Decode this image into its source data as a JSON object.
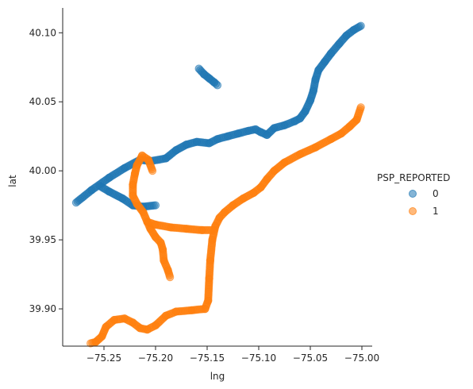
{
  "chart_data": {
    "type": "scatter",
    "title": "",
    "xlabel": "lng",
    "ylabel": "lat",
    "xlim": [
      -75.29,
      -74.99
    ],
    "ylim": [
      39.873,
      40.118
    ],
    "xticks": [
      -75.25,
      -75.2,
      -75.15,
      -75.1,
      -75.05,
      -75.0
    ],
    "xtick_labels": [
      "−75.25",
      "−75.20",
      "−75.15",
      "−75.10",
      "−75.05",
      "−75.00"
    ],
    "yticks": [
      39.9,
      39.95,
      40.0,
      40.05,
      40.1
    ],
    "ytick_labels": [
      "39.90",
      "39.95",
      "40.00",
      "40.05",
      "40.10"
    ],
    "grid": false,
    "legend": {
      "title": "PSP_REPORTED",
      "placement": "right"
    },
    "series": [
      {
        "name": "0",
        "color": "#1f77b4",
        "paths": [
          [
            [
              -75.277,
              39.977
            ],
            [
              -75.262,
              39.986
            ],
            [
              -75.245,
              39.995
            ],
            [
              -75.23,
              40.002
            ],
            [
              -75.215,
              40.008
            ],
            [
              -75.205,
              40.007
            ],
            [
              -75.19,
              40.009
            ],
            [
              -75.18,
              40.015
            ],
            [
              -75.17,
              40.019
            ],
            [
              -75.16,
              40.021
            ],
            [
              -75.148,
              40.02
            ],
            [
              -75.14,
              40.023
            ],
            [
              -75.13,
              40.025
            ],
            [
              -75.12,
              40.027
            ],
            [
              -75.11,
              40.029
            ],
            [
              -75.103,
              40.03
            ],
            [
              -75.098,
              40.028
            ],
            [
              -75.092,
              40.026
            ],
            [
              -75.085,
              40.031
            ],
            [
              -75.075,
              40.033
            ],
            [
              -75.065,
              40.036
            ],
            [
              -75.06,
              40.038
            ],
            [
              -75.055,
              40.043
            ],
            [
              -75.05,
              40.051
            ],
            [
              -75.047,
              40.058
            ],
            [
              -75.045,
              40.066
            ],
            [
              -75.042,
              40.073
            ],
            [
              -75.036,
              40.079
            ],
            [
              -75.03,
              40.085
            ],
            [
              -75.022,
              40.092
            ],
            [
              -75.015,
              40.098
            ],
            [
              -75.008,
              40.102
            ],
            [
              -75.001,
              40.105
            ]
          ],
          [
            [
              -75.254,
              39.989
            ],
            [
              -75.245,
              39.985
            ],
            [
              -75.232,
              39.98
            ],
            [
              -75.222,
              39.975
            ],
            [
              -75.212,
              39.974
            ],
            [
              -75.2,
              39.975
            ]
          ],
          [
            [
              -75.158,
              40.074
            ],
            [
              -75.153,
              40.07
            ],
            [
              -75.148,
              40.067
            ],
            [
              -75.143,
              40.064
            ],
            [
              -75.14,
              40.062
            ]
          ]
        ]
      },
      {
        "name": "1",
        "color": "#ff7f0e",
        "paths": [
          [
            [
              -75.2,
              40.046
            ],
            [
              -75.001,
              40.046
            ],
            [
              -75.005,
              40.037
            ],
            [
              -75.012,
              40.032
            ],
            [
              -75.02,
              40.027
            ],
            [
              -75.03,
              40.023
            ],
            [
              -75.045,
              40.017
            ],
            [
              -75.06,
              40.012
            ],
            [
              -75.075,
              40.006
            ],
            [
              -75.085,
              40.0
            ],
            [
              -75.092,
              39.994
            ],
            [
              -75.098,
              39.988
            ],
            [
              -75.105,
              39.984
            ],
            [
              -75.115,
              39.98
            ],
            [
              -75.125,
              39.975
            ],
            [
              -75.133,
              39.97
            ],
            [
              -75.138,
              39.966
            ],
            [
              -75.142,
              39.96
            ],
            [
              -75.145,
              39.95
            ],
            [
              -75.147,
              39.935
            ],
            [
              -75.148,
              39.922
            ],
            [
              -75.149,
              39.906
            ],
            [
              -75.152,
              39.9
            ],
            [
              -75.165,
              39.899
            ],
            [
              -75.18,
              39.898
            ],
            [
              -75.19,
              39.895
            ],
            [
              -75.2,
              39.888
            ],
            [
              -75.208,
              39.885
            ],
            [
              -75.215,
              39.886
            ],
            [
              -75.222,
              39.89
            ],
            [
              -75.23,
              39.893
            ],
            [
              -75.24,
              39.892
            ],
            [
              -75.248,
              39.887
            ],
            [
              -75.252,
              39.88
            ],
            [
              -75.258,
              39.876
            ],
            [
              -75.263,
              39.875
            ]
          ],
          [
            [
              -75.203,
              40.0
            ],
            [
              -75.207,
              40.008
            ],
            [
              -75.213,
              40.011
            ],
            [
              -75.218,
              40.004
            ],
            [
              -75.22,
              39.998
            ],
            [
              -75.222,
              39.99
            ],
            [
              -75.222,
              39.982
            ],
            [
              -75.218,
              39.976
            ],
            [
              -75.212,
              39.97
            ],
            [
              -75.208,
              39.963
            ],
            [
              -75.205,
              39.958
            ],
            [
              -75.2,
              39.952
            ],
            [
              -75.195,
              39.948
            ],
            [
              -75.193,
              39.943
            ],
            [
              -75.192,
              39.935
            ],
            [
              -75.188,
              39.928
            ],
            [
              -75.186,
              39.923
            ]
          ],
          [
            [
              -75.208,
              39.963
            ],
            [
              -75.2,
              39.961
            ],
            [
              -75.185,
              39.959
            ],
            [
              -75.17,
              39.958
            ],
            [
              -75.155,
              39.957
            ],
            [
              -75.144,
              39.957
            ]
          ]
        ]
      }
    ]
  }
}
